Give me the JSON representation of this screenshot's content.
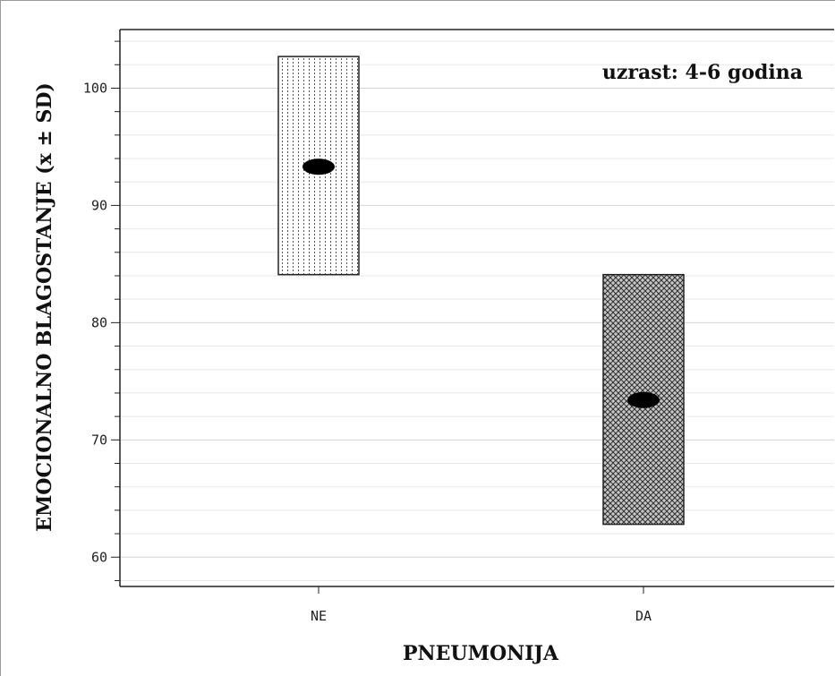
{
  "chart_data": {
    "type": "bar",
    "description_type": "mean ± SD range bars",
    "categories": [
      "NE",
      "DA"
    ],
    "series": [
      {
        "mean": [
          93.3,
          73.4
        ],
        "sd_low": [
          84.1,
          62.8
        ],
        "sd_high": [
          102.7,
          84.1
        ]
      }
    ],
    "xlabel": "PNEUMONIJA",
    "ylabel": "EMOCIONALNO BLAGOSTANJE (x ± SD)",
    "annotation": "uzrast: 4-6 godina",
    "yticks": [
      60,
      70,
      80,
      90,
      100
    ],
    "ylim": [
      57.5,
      105
    ],
    "grid": true,
    "patterns": [
      "vertical-dots",
      "crosshatch"
    ]
  }
}
